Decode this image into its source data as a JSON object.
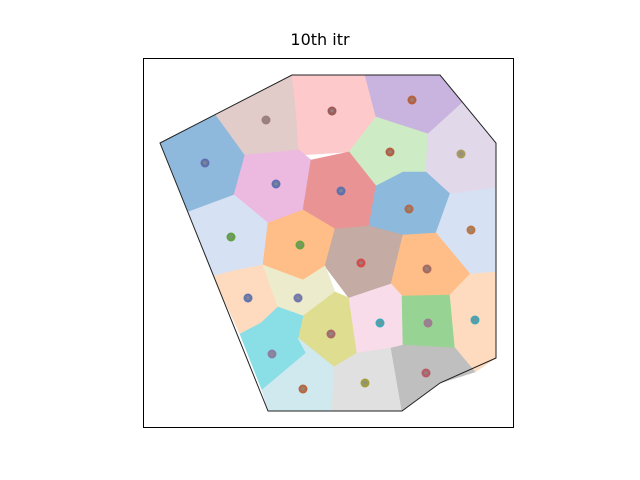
{
  "chart_data": {
    "type": "scatter",
    "title": "10th itr",
    "xlabel": "",
    "ylabel": "",
    "axes_ticks": false,
    "grid": false,
    "boundary": [
      [
        160,
        143
      ],
      [
        292,
        75
      ],
      [
        440,
        75
      ],
      [
        496,
        143
      ],
      [
        496,
        358
      ],
      [
        440,
        383
      ],
      [
        402,
        411
      ],
      [
        268,
        411
      ],
      [
        160,
        143
      ]
    ],
    "cells": [
      {
        "fill": "#8fb9dc",
        "site": [
          205,
          163
        ],
        "site_color": "#5b6fae",
        "poly": [
          [
            160,
            143
          ],
          [
            216,
            115
          ],
          [
            245,
            155
          ],
          [
            234,
            195
          ],
          [
            188,
            212
          ]
        ]
      },
      {
        "fill": "#e2ccc9",
        "site": [
          266,
          120
        ],
        "site_color": "#9e7e7c",
        "poly": [
          [
            216,
            115
          ],
          [
            292,
            75
          ],
          [
            296,
            110
          ],
          [
            299,
            150
          ],
          [
            245,
            155
          ]
        ]
      },
      {
        "fill": "#fdc9ca",
        "site": [
          332,
          111
        ],
        "site_color": "#9d5858",
        "poly": [
          [
            292,
            75
          ],
          [
            365,
            75
          ],
          [
            376,
            117
          ],
          [
            349,
            152
          ],
          [
            299,
            155
          ],
          [
            296,
            110
          ]
        ]
      },
      {
        "fill": "#c8b4de",
        "site": [
          412,
          100
        ],
        "site_color": "#b75e3c",
        "poly": [
          [
            365,
            75
          ],
          [
            440,
            75
          ],
          [
            462,
            103
          ],
          [
            428,
            134
          ],
          [
            376,
            117
          ]
        ]
      },
      {
        "fill": "#cdecc6",
        "site": [
          390,
          152
        ],
        "site_color": "#b45e3f",
        "poly": [
          [
            376,
            117
          ],
          [
            428,
            134
          ],
          [
            426,
            172
          ],
          [
            403,
            172
          ],
          [
            376,
            186
          ],
          [
            349,
            152
          ]
        ]
      },
      {
        "fill": "#e1d8ea",
        "site": [
          461,
          154
        ],
        "site_color": "#a89a5e",
        "poly": [
          [
            428,
            134
          ],
          [
            462,
            103
          ],
          [
            496,
            143
          ],
          [
            496,
            188
          ],
          [
            450,
            194
          ],
          [
            426,
            172
          ]
        ]
      },
      {
        "fill": "#ecbae0",
        "site": [
          276,
          184
        ],
        "site_color": "#5f6fb0",
        "poly": [
          [
            245,
            155
          ],
          [
            299,
            150
          ],
          [
            311,
            160
          ],
          [
            303,
            210
          ],
          [
            268,
            223
          ],
          [
            234,
            195
          ]
        ]
      },
      {
        "fill": "#e99395",
        "site": [
          341,
          191
        ],
        "site_color": "#5a6fb0",
        "poly": [
          [
            311,
            160
          ],
          [
            349,
            152
          ],
          [
            376,
            186
          ],
          [
            369,
            226
          ],
          [
            335,
            229
          ],
          [
            303,
            210
          ]
        ]
      },
      {
        "fill": "#8db9dc",
        "site": [
          409,
          209
        ],
        "site_color": "#b06a4a",
        "poly": [
          [
            376,
            186
          ],
          [
            403,
            172
          ],
          [
            426,
            172
          ],
          [
            450,
            194
          ],
          [
            436,
            233
          ],
          [
            403,
            235
          ],
          [
            369,
            226
          ]
        ]
      },
      {
        "fill": "#d6e1f3",
        "site": [
          471,
          230
        ],
        "site_color": "#be7640",
        "poly": [
          [
            450,
            194
          ],
          [
            496,
            188
          ],
          [
            496,
            272
          ],
          [
            470,
            274
          ],
          [
            436,
            233
          ]
        ]
      },
      {
        "fill": "#d6e1f3",
        "site": [
          231,
          237
        ],
        "site_color": "#5fa440",
        "poly": [
          [
            188,
            212
          ],
          [
            234,
            195
          ],
          [
            268,
            223
          ],
          [
            263,
            265
          ],
          [
            237,
            270
          ],
          [
            213,
            276
          ]
        ]
      },
      {
        "fill": "#ffbd88",
        "site": [
          300,
          245
        ],
        "site_color": "#66a33f",
        "poly": [
          [
            268,
            223
          ],
          [
            303,
            210
          ],
          [
            335,
            229
          ],
          [
            325,
            266
          ],
          [
            303,
            280
          ],
          [
            263,
            265
          ]
        ]
      },
      {
        "fill": "#c4aba4",
        "site": [
          361,
          263
        ],
        "site_color": "#d84848",
        "poly": [
          [
            335,
            229
          ],
          [
            369,
            226
          ],
          [
            403,
            235
          ],
          [
            391,
            284
          ],
          [
            349,
            298
          ],
          [
            325,
            266
          ]
        ]
      },
      {
        "fill": "#ffbd88",
        "site": [
          427,
          269
        ],
        "site_color": "#a86a5c",
        "poly": [
          [
            403,
            235
          ],
          [
            436,
            233
          ],
          [
            470,
            274
          ],
          [
            450,
            295
          ],
          [
            402,
            296
          ],
          [
            391,
            284
          ]
        ]
      },
      {
        "fill": "#fedbbf",
        "site": [
          248,
          298
        ],
        "site_color": "#6274b0",
        "poly": [
          [
            213,
            276
          ],
          [
            237,
            270
          ],
          [
            263,
            265
          ],
          [
            278,
            307
          ],
          [
            261,
            323
          ],
          [
            240,
            334
          ]
        ]
      },
      {
        "fill": "#ecebcb",
        "site": [
          298,
          298
        ],
        "site_color": "#7078b0",
        "poly": [
          [
            263,
            265
          ],
          [
            303,
            280
          ],
          [
            325,
            266
          ],
          [
            335,
            292
          ],
          [
            303,
            316
          ],
          [
            278,
            307
          ]
        ]
      },
      {
        "fill": "#dedd90",
        "site": [
          331,
          334
        ],
        "site_color": "#a86868",
        "poly": [
          [
            303,
            316
          ],
          [
            335,
            292
          ],
          [
            349,
            298
          ],
          [
            357,
            353
          ],
          [
            334,
            367
          ],
          [
            298,
            338
          ]
        ]
      },
      {
        "fill": "#f9dcea",
        "site": [
          380,
          323
        ],
        "site_color": "#3ea8b8",
        "poly": [
          [
            349,
            298
          ],
          [
            391,
            284
          ],
          [
            402,
            296
          ],
          [
            403,
            345
          ],
          [
            391,
            348
          ],
          [
            357,
            353
          ]
        ]
      },
      {
        "fill": "#97d493",
        "site": [
          428,
          323
        ],
        "site_color": "#a07b92",
        "poly": [
          [
            402,
            296
          ],
          [
            450,
            295
          ],
          [
            455,
            348
          ],
          [
            403,
            345
          ]
        ]
      },
      {
        "fill": "#fedbbf",
        "site": [
          475,
          320
        ],
        "site_color": "#3ea8b8",
        "poly": [
          [
            450,
            295
          ],
          [
            470,
            274
          ],
          [
            496,
            272
          ],
          [
            496,
            358
          ],
          [
            475,
            372
          ],
          [
            455,
            348
          ]
        ]
      },
      {
        "fill": "#8adee6",
        "site": [
          272,
          354
        ],
        "site_color": "#8a7fa6",
        "poly": [
          [
            240,
            334
          ],
          [
            261,
            323
          ],
          [
            278,
            307
          ],
          [
            303,
            316
          ],
          [
            298,
            338
          ],
          [
            306,
            353
          ],
          [
            262,
            390
          ]
        ]
      },
      {
        "fill": "#cfe9ef",
        "site": [
          303,
          389
        ],
        "site_color": "#b9683d",
        "poly": [
          [
            262,
            390
          ],
          [
            306,
            353
          ],
          [
            298,
            338
          ],
          [
            334,
            367
          ],
          [
            332,
            411
          ],
          [
            268,
            411
          ]
        ]
      },
      {
        "fill": "#e0e0e0",
        "site": [
          365,
          383
        ],
        "site_color": "#a09e3e",
        "poly": [
          [
            334,
            367
          ],
          [
            357,
            353
          ],
          [
            391,
            348
          ],
          [
            402,
            411
          ],
          [
            332,
            411
          ]
        ]
      },
      {
        "fill": "#bfbfbf",
        "site": [
          426,
          373
        ],
        "site_color": "#b85a64",
        "poly": [
          [
            391,
            348
          ],
          [
            403,
            345
          ],
          [
            455,
            348
          ],
          [
            475,
            372
          ],
          [
            440,
            383
          ],
          [
            402,
            411
          ]
        ]
      }
    ]
  }
}
